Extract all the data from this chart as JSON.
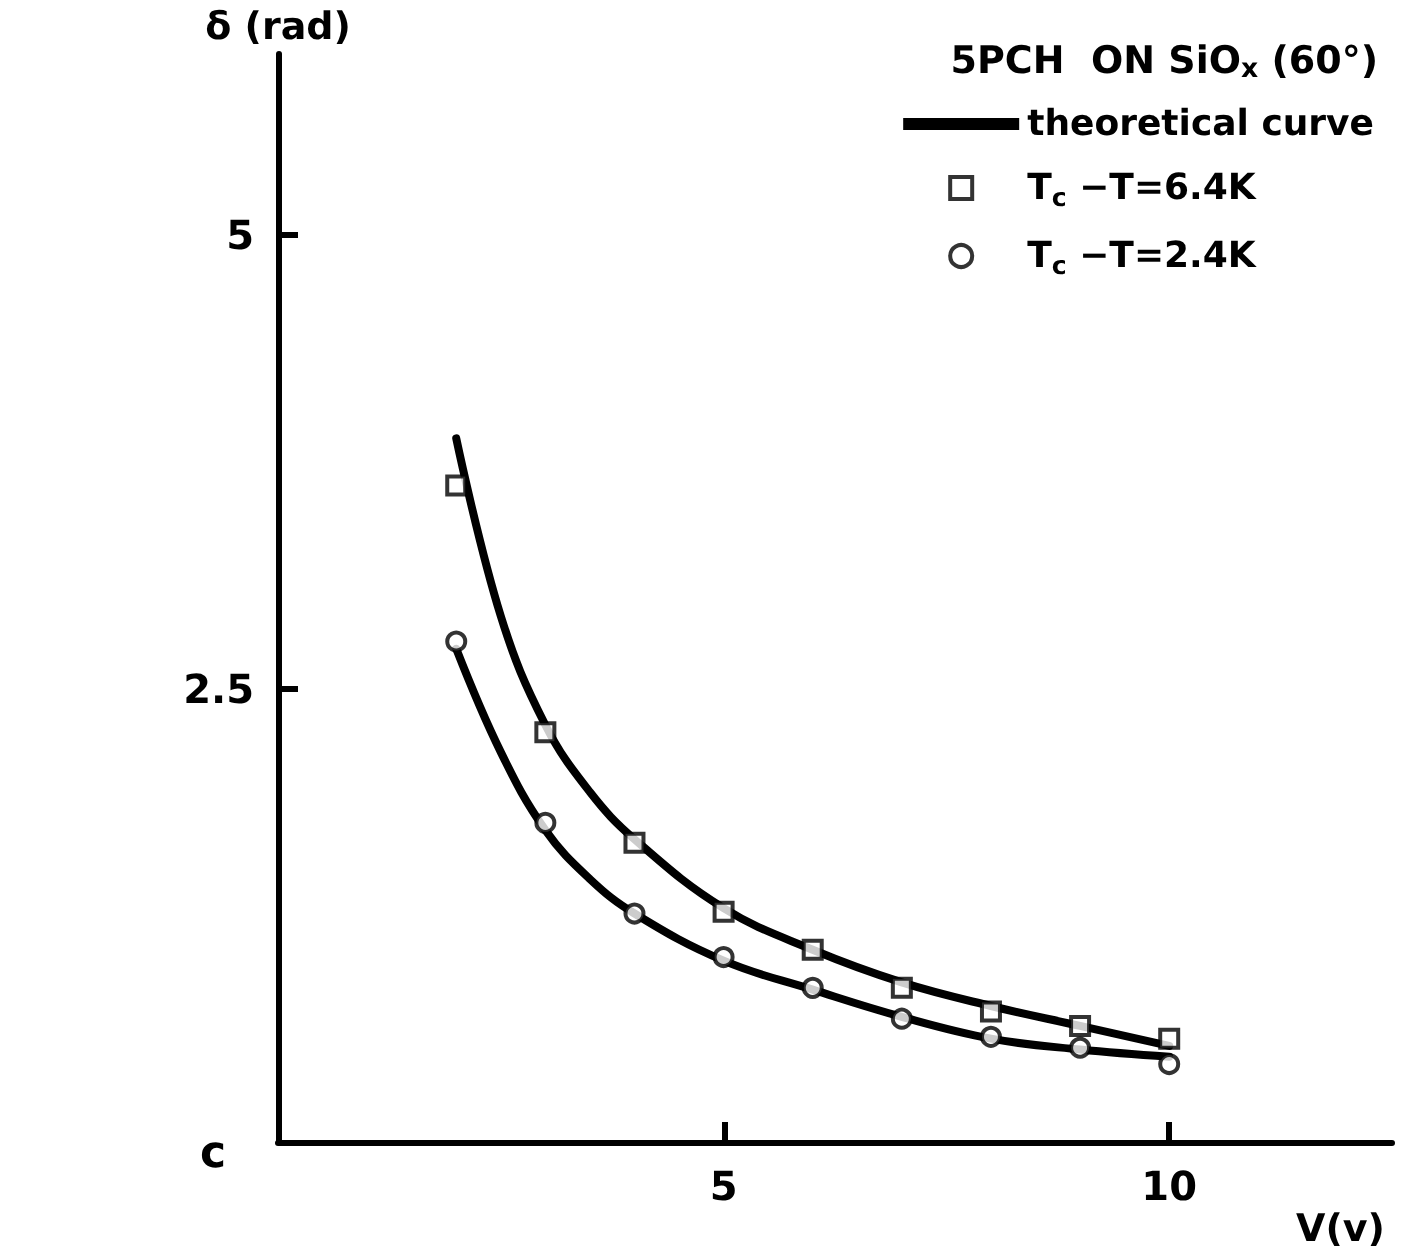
{
  "chart_data": {
    "type": "line",
    "title": "5PCH  ON SiO$_{x}$ (60°)",
    "xlabel": "V(v)",
    "ylabel": "δ (rad)",
    "annotations": [
      "c"
    ],
    "xlim": [
      0,
      12.5
    ],
    "xticks": [
      5,
      10
    ],
    "ylim": [
      0,
      6
    ],
    "yticks": [
      2.5,
      5
    ],
    "grid": false,
    "legend": "top right",
    "series": [
      {
        "name": "theoretical curve",
        "marker": "none",
        "line_style": "solid",
        "color": "#000000",
        "x": [
          2,
          2.5,
          3,
          3.5,
          4,
          5,
          6,
          7,
          8,
          9,
          10
        ],
        "values": [
          3.88,
          2.9,
          2.3,
          1.93,
          1.67,
          1.29,
          1.06,
          0.88,
          0.75,
          0.64,
          0.53
        ]
      },
      {
        "marker": "none",
        "line_style": "solid",
        "color": "#000000",
        "x": [
          2,
          2.5,
          3,
          3.5,
          4,
          5,
          6,
          7,
          8,
          9,
          10
        ],
        "values": [
          2.72,
          2.15,
          1.72,
          1.45,
          1.26,
          1.0,
          0.84,
          0.69,
          0.57,
          0.51,
          0.47
        ]
      },
      {
        "name": "T$_{c}$ −T=6.4K",
        "type": "scatter",
        "marker": "square",
        "color": "#000000",
        "x": [
          2,
          3,
          4,
          5,
          6,
          7,
          8,
          9,
          10
        ],
        "values": [
          3.62,
          2.26,
          1.65,
          1.27,
          1.06,
          0.85,
          0.72,
          0.64,
          0.57
        ]
      },
      {
        "name": "T$_{c}$ −T=2.4K",
        "type": "scatter",
        "marker": "circle",
        "color": "#000000",
        "x": [
          2,
          3,
          4,
          5,
          6,
          7,
          8,
          9,
          10
        ],
        "values": [
          2.76,
          1.76,
          1.26,
          1.02,
          0.85,
          0.68,
          0.58,
          0.52,
          0.43
        ]
      }
    ]
  }
}
